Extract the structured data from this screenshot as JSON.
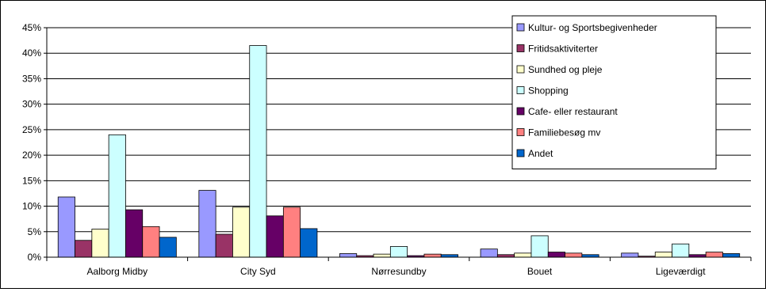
{
  "chart_data": {
    "type": "bar",
    "categories": [
      "Aalborg Midby",
      "City Syd",
      "Nørresundby",
      "Bouet",
      "Ligeværdigt"
    ],
    "series": [
      {
        "name": "Kultur- og Sportsbegivenheder",
        "color": "#9999ff",
        "values": [
          11.8,
          13.1,
          0.7,
          1.6,
          0.8
        ]
      },
      {
        "name": "Fritidsaktiviterter",
        "color": "#993366",
        "values": [
          3.3,
          4.5,
          0.3,
          0.5,
          0.2
        ]
      },
      {
        "name": "Sundhed og pleje",
        "color": "#ffffcc",
        "values": [
          5.5,
          9.8,
          0.6,
          0.8,
          1.0
        ]
      },
      {
        "name": "Shopping",
        "color": "#ccffff",
        "values": [
          24.0,
          41.5,
          2.1,
          4.2,
          2.6
        ]
      },
      {
        "name": "Cafe- eller restaurant",
        "color": "#660066",
        "values": [
          9.3,
          8.1,
          0.3,
          1.0,
          0.5
        ]
      },
      {
        "name": "Familiebesøg mv",
        "color": "#ff8080",
        "values": [
          6.0,
          9.8,
          0.6,
          0.8,
          1.0
        ]
      },
      {
        "name": "Andet",
        "color": "#0066cc",
        "values": [
          3.9,
          5.6,
          0.5,
          0.5,
          0.7
        ]
      }
    ],
    "yticks": [
      "0%",
      "5%",
      "10%",
      "15%",
      "20%",
      "25%",
      "30%",
      "35%",
      "40%",
      "45%"
    ],
    "ylim": [
      0,
      45
    ],
    "grid": true,
    "legend": "top-right"
  }
}
